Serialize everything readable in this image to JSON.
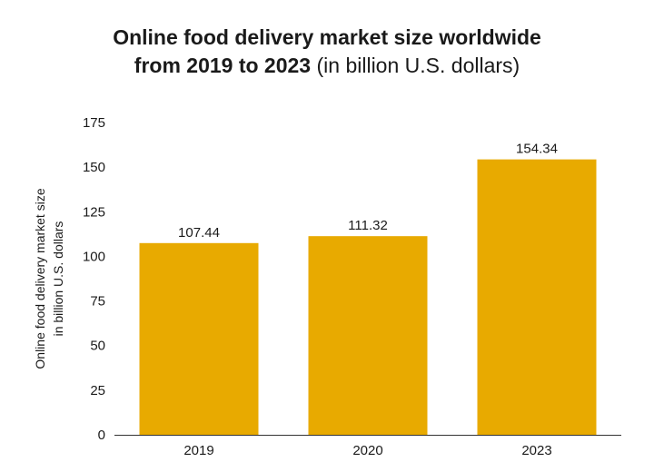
{
  "chart_data": {
    "type": "bar",
    "title_line1": "Online food delivery market size worldwide",
    "title_line2_bold": "from 2019 to 2023",
    "title_line2_rest": "(in billion U.S. dollars)",
    "xlabel": "",
    "ylabel_line1": "Online food delivery market size",
    "ylabel_line2": "in billion U.S. dollars",
    "categories": [
      "2019",
      "2020",
      "2023"
    ],
    "values": [
      107.44,
      111.32,
      154.34
    ],
    "value_labels": [
      "107.44",
      "111.32",
      "154.34"
    ],
    "ylim": [
      0,
      175
    ],
    "yticks": [
      0,
      25,
      50,
      75,
      100,
      125,
      150,
      175
    ],
    "grid": false,
    "bar_color": "#E8AA00",
    "axis_color": "#333333"
  }
}
